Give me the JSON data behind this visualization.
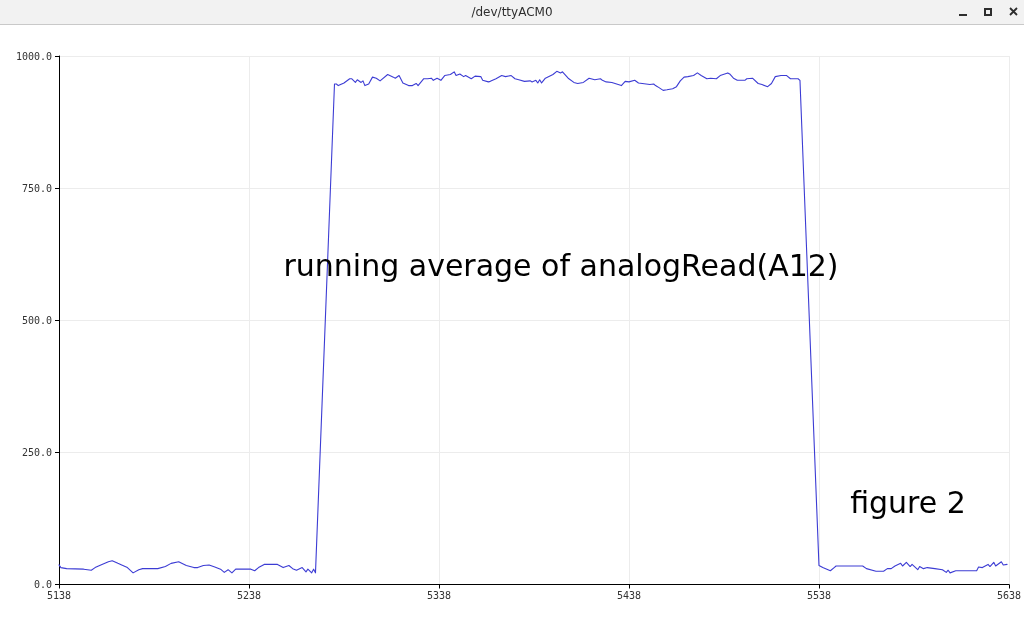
{
  "chart_data": {
    "type": "line",
    "title": "/dev/ttyACM0",
    "annotations": [
      "running average of analogRead(A12)",
      "figure 2"
    ],
    "x": [
      5138,
      5139,
      5142,
      5151,
      5155,
      5157,
      5160,
      5164,
      5166,
      5169,
      5171,
      5174,
      5177,
      5180,
      5182,
      5190,
      5194,
      5197,
      5201,
      5205,
      5209,
      5211,
      5214,
      5217,
      5220,
      5223,
      5225,
      5227,
      5229,
      5231,
      5239,
      5241,
      5243,
      5246,
      5253,
      5256,
      5259,
      5261,
      5263,
      5266,
      5268,
      5269,
      5271,
      5272,
      5273,
      5283,
      5284,
      5285,
      5288,
      5291,
      5292,
      5294,
      5295,
      5297,
      5298,
      5299,
      5301,
      5303,
      5305,
      5307,
      5311,
      5314,
      5315,
      5317,
      5319,
      5322,
      5324,
      5326,
      5327,
      5330,
      5332,
      5334,
      5335,
      5337,
      5339,
      5341,
      5344,
      5346,
      5347,
      5349,
      5351,
      5352,
      5355,
      5357,
      5360,
      5361,
      5364,
      5365,
      5368,
      5371,
      5373,
      5376,
      5378,
      5380,
      5383,
      5386,
      5387,
      5389,
      5390,
      5391,
      5392,
      5394,
      5398,
      5400,
      5402,
      5403,
      5406,
      5409,
      5411,
      5414,
      5417,
      5420,
      5423,
      5424,
      5426,
      5429,
      5434,
      5436,
      5438,
      5441,
      5443,
      5445,
      5447,
      5449,
      5451,
      5452,
      5453,
      5456,
      5458,
      5461,
      5463,
      5465,
      5467,
      5469,
      5472,
      5474,
      5476,
      5479,
      5481,
      5484,
      5486,
      5490,
      5491,
      5493,
      5495,
      5499,
      5500,
      5503,
      5506,
      5508,
      5511,
      5513,
      5515,
      5518,
      5521,
      5523,
      5527,
      5528,
      5538,
      5540,
      5544,
      5546,
      5547,
      5552,
      5561,
      5563,
      5568,
      5572,
      5574,
      5576,
      5578,
      5581,
      5582,
      5584,
      5586,
      5587,
      5590,
      5591,
      5593,
      5595,
      5599,
      5603,
      5605,
      5606,
      5607,
      5610,
      5621,
      5622,
      5624,
      5627,
      5628,
      5630,
      5631,
      5634,
      5635,
      5637
    ],
    "values": [
      37,
      32,
      30,
      29,
      27,
      32,
      37,
      43,
      45,
      40,
      37,
      32,
      22,
      28,
      30,
      30,
      34,
      40,
      43,
      36,
      32,
      32,
      36,
      37,
      33,
      29,
      23,
      28,
      22,
      29,
      29,
      26,
      32,
      38,
      38,
      32,
      36,
      30,
      27,
      32,
      24,
      29,
      22,
      29,
      22,
      947,
      947,
      944,
      949,
      957,
      957,
      950,
      955,
      950,
      953,
      944,
      947,
      960,
      958,
      953,
      965,
      960,
      958,
      963,
      949,
      944,
      944,
      948,
      944,
      957,
      957,
      958,
      954,
      958,
      954,
      963,
      965,
      970,
      963,
      966,
      961,
      963,
      957,
      962,
      961,
      954,
      951,
      952,
      957,
      963,
      961,
      963,
      957,
      955,
      952,
      953,
      951,
      954,
      949,
      955,
      949,
      958,
      965,
      971,
      968,
      970,
      958,
      950,
      948,
      950,
      958,
      955,
      957,
      954,
      951,
      950,
      944,
      952,
      951,
      954,
      949,
      948,
      947,
      946,
      947,
      944,
      942,
      935,
      936,
      938,
      942,
      953,
      960,
      961,
      963,
      968,
      963,
      957,
      958,
      957,
      963,
      968,
      966,
      958,
      954,
      954,
      957,
      958,
      948,
      946,
      942,
      948,
      961,
      963,
      963,
      957,
      957,
      954,
      36,
      32,
      26,
      32,
      35,
      35,
      35,
      30,
      25,
      25,
      30,
      30,
      35,
      40,
      35,
      42,
      34,
      38,
      28,
      34,
      30,
      32,
      30,
      28,
      23,
      27,
      22,
      26,
      26,
      33,
      32,
      38,
      34,
      42,
      35,
      43,
      37,
      38
    ],
    "color": "#3c3cd4",
    "xlim": [
      5138,
      5638
    ],
    "xticks": [
      5138,
      5238,
      5338,
      5438,
      5538,
      5638
    ],
    "ylim": [
      0,
      1000
    ],
    "yticks": [
      {
        "value": 0,
        "label": "0.0"
      },
      {
        "value": 250,
        "label": "250.0"
      },
      {
        "value": 500,
        "label": "500.0"
      },
      {
        "value": 750,
        "label": "750.0"
      },
      {
        "value": 1000,
        "label": "1000.0"
      }
    ],
    "grid": true
  }
}
